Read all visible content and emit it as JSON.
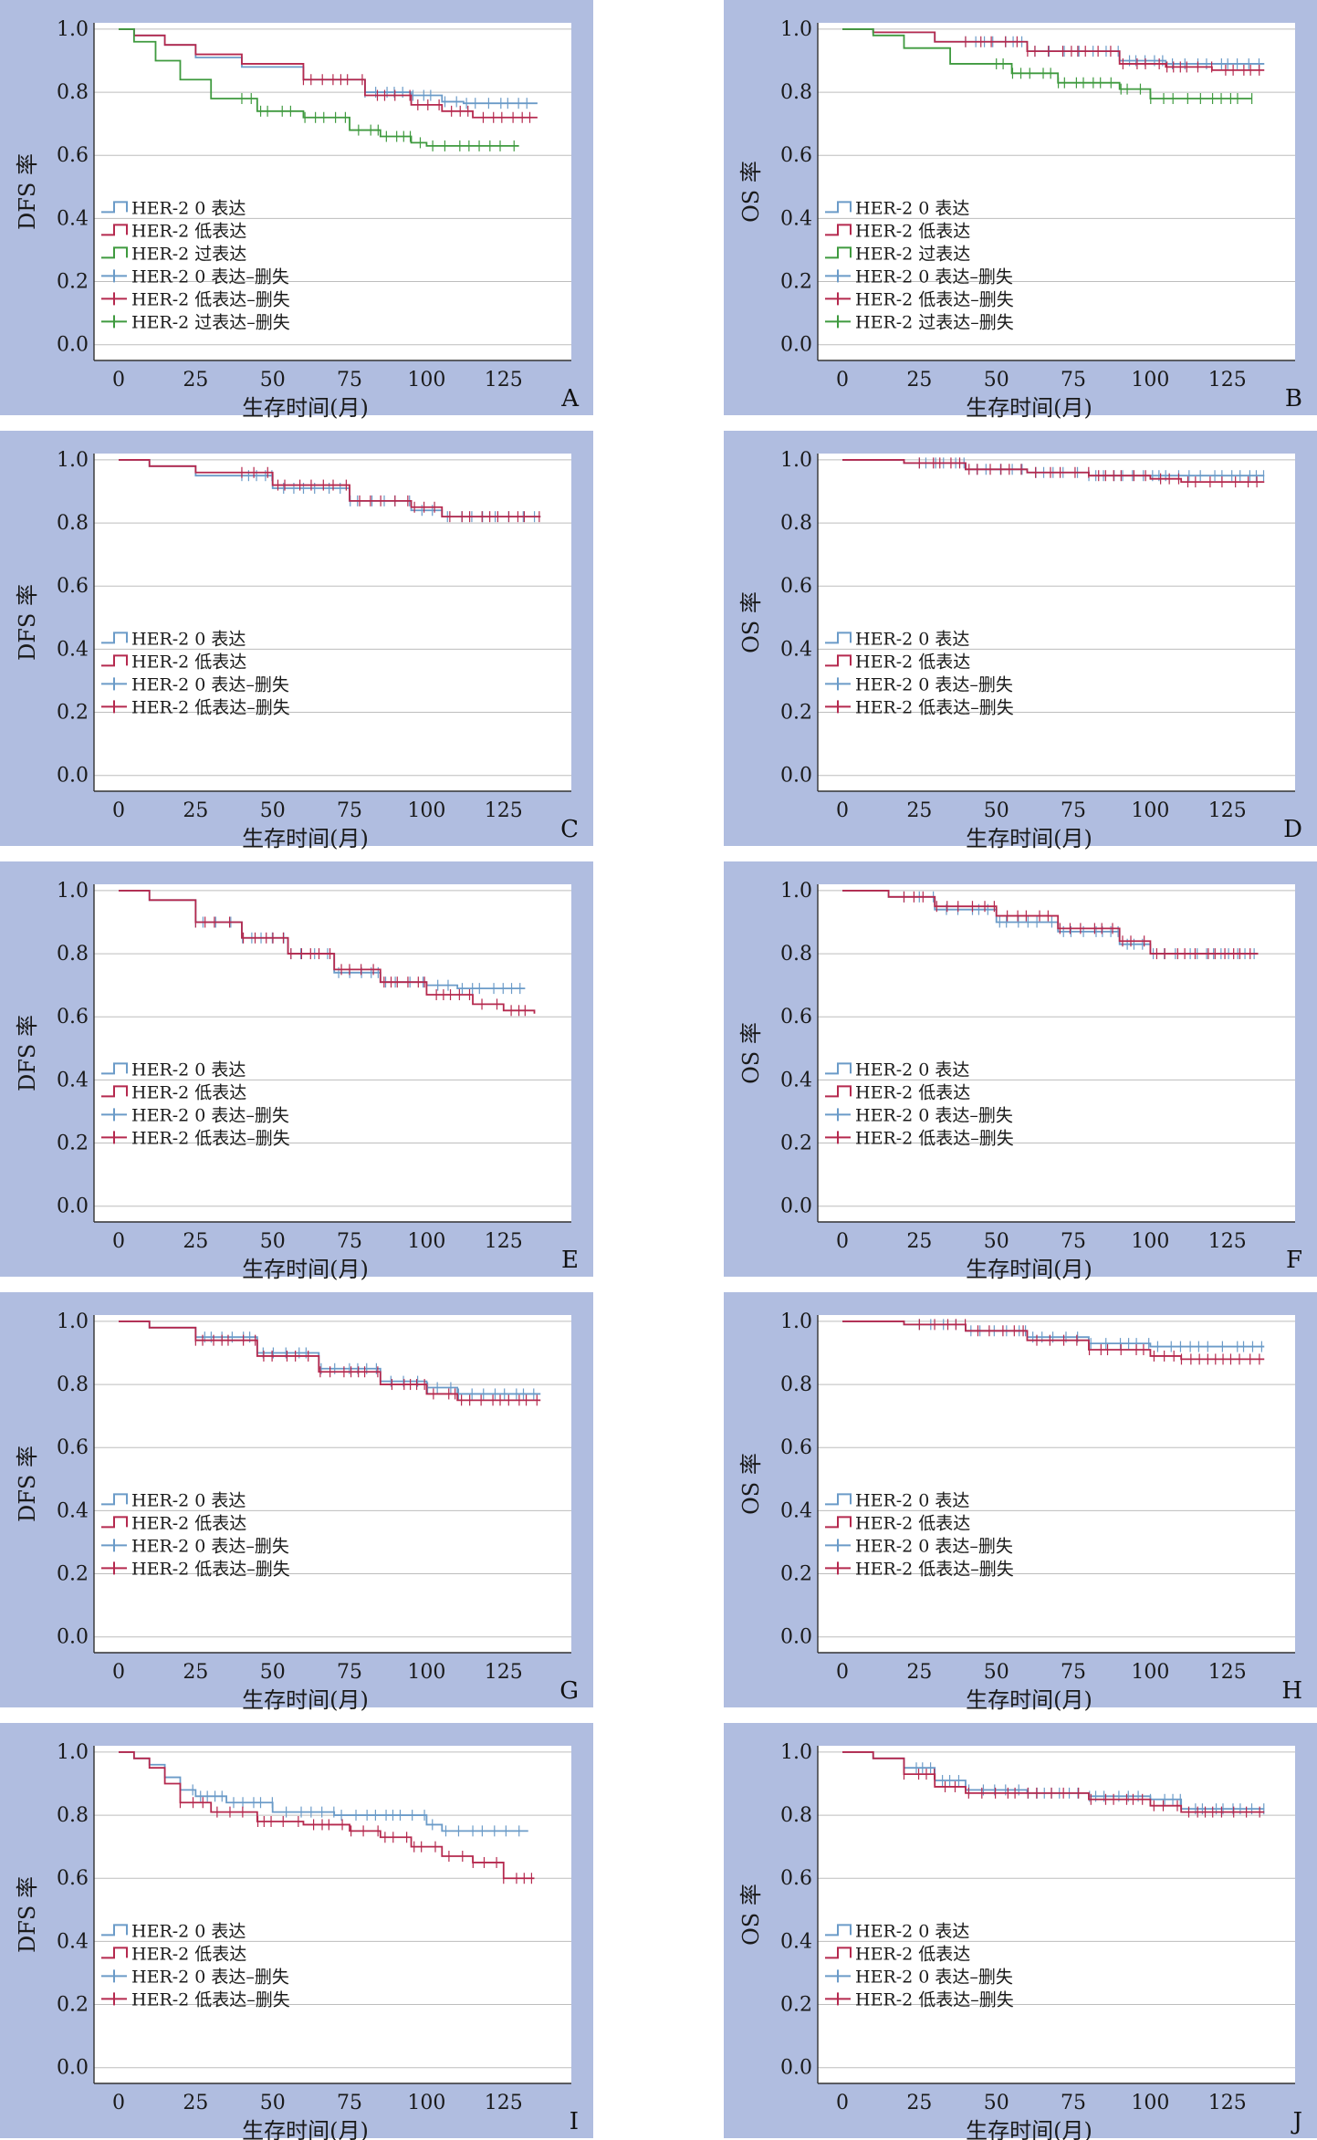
{
  "colors": {
    "panel_bg": "#b0bde0",
    "plot_bg": "#ffffff",
    "grid": "#bdbdbd",
    "axis": "#333333",
    "text": "#1a1a1a"
  },
  "legend_names": {
    "zero": "HER-2 0 表达",
    "low": "HER-2 低表达",
    "over": "HER-2 过表达",
    "zero_cens": "HER-2 0 表达–删失",
    "low_cens": "HER-2 低表达–删失",
    "over_cens": "HER-2 过表达–删失"
  },
  "chart_data": [
    {
      "panel_letter": "A",
      "type": "line",
      "ylabel": "DFS 率",
      "xlabel": "生存时间(月)",
      "xticks": [
        "0",
        "25",
        "50",
        "75",
        "100",
        "125"
      ],
      "yticks": [
        "0.0",
        "0.2",
        "0.4",
        "0.6",
        "0.8",
        "1.0"
      ],
      "xlim": [
        -8,
        147
      ],
      "ylim": [
        -0.05,
        1.02
      ],
      "series": [
        {
          "key": "zero",
          "color": "#6b9bc8",
          "x": [
            0,
            5,
            15,
            25,
            40,
            60,
            80,
            95,
            105,
            112,
            136
          ],
          "y": [
            1.0,
            0.98,
            0.95,
            0.91,
            0.88,
            0.84,
            0.8,
            0.79,
            0.77,
            0.765,
            0.765
          ],
          "cens_from": 80
        },
        {
          "key": "low",
          "color": "#b5294e",
          "x": [
            0,
            5,
            15,
            25,
            40,
            60,
            80,
            95,
            105,
            115,
            136
          ],
          "y": [
            1.0,
            0.98,
            0.95,
            0.92,
            0.89,
            0.84,
            0.79,
            0.76,
            0.74,
            0.72,
            0.72
          ],
          "cens_from": 60
        },
        {
          "key": "over",
          "color": "#3f9a3f",
          "x": [
            0,
            5,
            12,
            20,
            30,
            45,
            60,
            75,
            85,
            95,
            100,
            130
          ],
          "y": [
            1.0,
            0.96,
            0.9,
            0.84,
            0.78,
            0.74,
            0.72,
            0.68,
            0.66,
            0.64,
            0.63,
            0.63
          ],
          "cens_from": 40
        }
      ]
    },
    {
      "panel_letter": "B",
      "type": "line",
      "ylabel": "OS 率",
      "xlabel": "生存时间(月)",
      "xticks": [
        "0",
        "25",
        "50",
        "75",
        "100",
        "125"
      ],
      "yticks": [
        "0.0",
        "0.2",
        "0.4",
        "0.6",
        "0.8",
        "1.0"
      ],
      "xlim": [
        -8,
        147
      ],
      "ylim": [
        -0.05,
        1.02
      ],
      "series": [
        {
          "key": "zero",
          "color": "#6b9bc8",
          "x": [
            0,
            10,
            30,
            60,
            90,
            105,
            137
          ],
          "y": [
            1.0,
            0.99,
            0.96,
            0.93,
            0.9,
            0.89,
            0.89
          ],
          "cens_from": 40
        },
        {
          "key": "low",
          "color": "#b5294e",
          "x": [
            0,
            10,
            30,
            60,
            90,
            105,
            120,
            137
          ],
          "y": [
            1.0,
            0.99,
            0.96,
            0.93,
            0.89,
            0.88,
            0.87,
            0.87
          ],
          "cens_from": 40
        },
        {
          "key": "over",
          "color": "#3f9a3f",
          "x": [
            0,
            10,
            20,
            35,
            55,
            70,
            90,
            100,
            133
          ],
          "y": [
            1.0,
            0.98,
            0.94,
            0.89,
            0.86,
            0.83,
            0.81,
            0.78,
            0.78
          ],
          "cens_from": 50
        }
      ]
    },
    {
      "panel_letter": "C",
      "type": "line",
      "ylabel": "DFS 率",
      "xlabel": "生存时间(月)",
      "xticks": [
        "0",
        "25",
        "50",
        "75",
        "100",
        "125"
      ],
      "yticks": [
        "0.0",
        "0.2",
        "0.4",
        "0.6",
        "0.8",
        "1.0"
      ],
      "xlim": [
        -8,
        147
      ],
      "ylim": [
        -0.05,
        1.02
      ],
      "series": [
        {
          "key": "zero",
          "color": "#6b9bc8",
          "x": [
            0,
            10,
            25,
            50,
            75,
            95,
            105,
            137
          ],
          "y": [
            1.0,
            0.98,
            0.95,
            0.91,
            0.87,
            0.84,
            0.82,
            0.82
          ],
          "cens_from": 40
        },
        {
          "key": "low",
          "color": "#b5294e",
          "x": [
            0,
            10,
            25,
            50,
            75,
            95,
            105,
            137
          ],
          "y": [
            1.0,
            0.98,
            0.96,
            0.92,
            0.87,
            0.85,
            0.82,
            0.82
          ],
          "cens_from": 40
        }
      ]
    },
    {
      "panel_letter": "D",
      "type": "line",
      "ylabel": "OS 率",
      "xlabel": "生存时间(月)",
      "xticks": [
        "0",
        "25",
        "50",
        "75",
        "100",
        "125"
      ],
      "yticks": [
        "0.0",
        "0.2",
        "0.4",
        "0.6",
        "0.8",
        "1.0"
      ],
      "xlim": [
        -8,
        147
      ],
      "ylim": [
        -0.05,
        1.02
      ],
      "series": [
        {
          "key": "zero",
          "color": "#6b9bc8",
          "x": [
            0,
            20,
            40,
            60,
            80,
            100,
            137
          ],
          "y": [
            1.0,
            0.99,
            0.97,
            0.96,
            0.95,
            0.95,
            0.95
          ],
          "cens_from": 25
        },
        {
          "key": "low",
          "color": "#b5294e",
          "x": [
            0,
            20,
            40,
            60,
            80,
            100,
            110,
            137
          ],
          "y": [
            1.0,
            0.99,
            0.97,
            0.96,
            0.95,
            0.94,
            0.93,
            0.93
          ],
          "cens_from": 25
        }
      ]
    },
    {
      "panel_letter": "E",
      "type": "line",
      "ylabel": "DFS 率",
      "xlabel": "生存时间(月)",
      "xticks": [
        "0",
        "25",
        "50",
        "75",
        "100",
        "125"
      ],
      "yticks": [
        "0.0",
        "0.2",
        "0.4",
        "0.6",
        "0.8",
        "1.0"
      ],
      "xlim": [
        -8,
        147
      ],
      "ylim": [
        -0.05,
        1.02
      ],
      "series": [
        {
          "key": "zero",
          "color": "#6b9bc8",
          "x": [
            0,
            10,
            25,
            40,
            55,
            70,
            85,
            100,
            110,
            132
          ],
          "y": [
            1.0,
            0.97,
            0.9,
            0.85,
            0.8,
            0.74,
            0.71,
            0.7,
            0.69,
            0.69
          ],
          "cens_from": 25
        },
        {
          "key": "low",
          "color": "#b5294e",
          "x": [
            0,
            10,
            25,
            40,
            55,
            70,
            85,
            100,
            115,
            125,
            135
          ],
          "y": [
            1.0,
            0.97,
            0.9,
            0.85,
            0.8,
            0.75,
            0.71,
            0.67,
            0.64,
            0.62,
            0.61
          ],
          "cens_from": 25
        }
      ]
    },
    {
      "panel_letter": "F",
      "type": "line",
      "ylabel": "OS 率",
      "xlabel": "生存时间(月)",
      "xticks": [
        "0",
        "25",
        "50",
        "75",
        "100",
        "125"
      ],
      "yticks": [
        "0.0",
        "0.2",
        "0.4",
        "0.6",
        "0.8",
        "1.0"
      ],
      "xlim": [
        -8,
        147
      ],
      "ylim": [
        -0.05,
        1.02
      ],
      "series": [
        {
          "key": "zero",
          "color": "#6b9bc8",
          "x": [
            0,
            15,
            30,
            50,
            70,
            90,
            100,
            135
          ],
          "y": [
            1.0,
            0.98,
            0.94,
            0.9,
            0.87,
            0.83,
            0.8,
            0.8
          ],
          "cens_from": 20
        },
        {
          "key": "low",
          "color": "#b5294e",
          "x": [
            0,
            15,
            30,
            50,
            70,
            90,
            100,
            135
          ],
          "y": [
            1.0,
            0.98,
            0.95,
            0.92,
            0.88,
            0.84,
            0.8,
            0.8
          ],
          "cens_from": 20
        }
      ]
    },
    {
      "panel_letter": "G",
      "type": "line",
      "ylabel": "DFS 率",
      "xlabel": "生存时间(月)",
      "xticks": [
        "0",
        "25",
        "50",
        "75",
        "100",
        "125"
      ],
      "yticks": [
        "0.0",
        "0.2",
        "0.4",
        "0.6",
        "0.8",
        "1.0"
      ],
      "xlim": [
        -8,
        147
      ],
      "ylim": [
        -0.05,
        1.02
      ],
      "series": [
        {
          "key": "zero",
          "color": "#6b9bc8",
          "x": [
            0,
            10,
            25,
            45,
            65,
            85,
            100,
            110,
            137
          ],
          "y": [
            1.0,
            0.98,
            0.95,
            0.9,
            0.85,
            0.81,
            0.79,
            0.77,
            0.77
          ],
          "cens_from": 25
        },
        {
          "key": "low",
          "color": "#b5294e",
          "x": [
            0,
            10,
            25,
            45,
            65,
            85,
            100,
            110,
            137
          ],
          "y": [
            1.0,
            0.98,
            0.94,
            0.89,
            0.84,
            0.8,
            0.77,
            0.75,
            0.75
          ],
          "cens_from": 25
        }
      ]
    },
    {
      "panel_letter": "H",
      "type": "line",
      "ylabel": "OS 率",
      "xlabel": "生存时间(月)",
      "xticks": [
        "0",
        "25",
        "50",
        "75",
        "100",
        "125"
      ],
      "yticks": [
        "0.0",
        "0.2",
        "0.4",
        "0.6",
        "0.8",
        "1.0"
      ],
      "xlim": [
        -8,
        147
      ],
      "ylim": [
        -0.05,
        1.02
      ],
      "series": [
        {
          "key": "zero",
          "color": "#6b9bc8",
          "x": [
            0,
            20,
            40,
            60,
            80,
            100,
            137
          ],
          "y": [
            1.0,
            0.99,
            0.97,
            0.95,
            0.93,
            0.92,
            0.92
          ],
          "cens_from": 25
        },
        {
          "key": "low",
          "color": "#b5294e",
          "x": [
            0,
            20,
            40,
            60,
            80,
            100,
            110,
            137
          ],
          "y": [
            1.0,
            0.99,
            0.97,
            0.94,
            0.91,
            0.89,
            0.88,
            0.88
          ],
          "cens_from": 25
        }
      ]
    },
    {
      "panel_letter": "I",
      "type": "line",
      "ylabel": "DFS 率",
      "xlabel": "生存时间(月)",
      "xticks": [
        "0",
        "25",
        "50",
        "75",
        "100",
        "125"
      ],
      "yticks": [
        "0.0",
        "0.2",
        "0.4",
        "0.6",
        "0.8",
        "1.0"
      ],
      "xlim": [
        -8,
        147
      ],
      "ylim": [
        -0.05,
        1.02
      ],
      "series": [
        {
          "key": "zero",
          "color": "#6b9bc8",
          "x": [
            0,
            5,
            10,
            15,
            20,
            25,
            35,
            50,
            70,
            90,
            100,
            105,
            133
          ],
          "y": [
            1.0,
            0.98,
            0.96,
            0.92,
            0.88,
            0.86,
            0.84,
            0.81,
            0.8,
            0.8,
            0.77,
            0.75,
            0.75
          ],
          "cens_from": 20
        },
        {
          "key": "low",
          "color": "#b5294e",
          "x": [
            0,
            5,
            10,
            15,
            20,
            30,
            45,
            60,
            75,
            85,
            95,
            105,
            115,
            125,
            135
          ],
          "y": [
            1.0,
            0.98,
            0.95,
            0.9,
            0.84,
            0.81,
            0.78,
            0.77,
            0.75,
            0.73,
            0.7,
            0.67,
            0.65,
            0.6,
            0.6
          ],
          "cens_from": 20
        }
      ]
    },
    {
      "panel_letter": "J",
      "type": "line",
      "ylabel": "OS 率",
      "xlabel": "生存时间(月)",
      "xticks": [
        "0",
        "25",
        "50",
        "75",
        "100",
        "125"
      ],
      "yticks": [
        "0.0",
        "0.2",
        "0.4",
        "0.6",
        "0.8",
        "1.0"
      ],
      "xlim": [
        -8,
        147
      ],
      "ylim": [
        -0.05,
        1.02
      ],
      "series": [
        {
          "key": "zero",
          "color": "#6b9bc8",
          "x": [
            0,
            10,
            20,
            30,
            40,
            60,
            80,
            100,
            110,
            137
          ],
          "y": [
            1.0,
            0.98,
            0.95,
            0.91,
            0.88,
            0.87,
            0.86,
            0.85,
            0.82,
            0.82
          ],
          "cens_from": 20
        },
        {
          "key": "low",
          "color": "#b5294e",
          "x": [
            0,
            10,
            20,
            30,
            40,
            60,
            80,
            100,
            110,
            137
          ],
          "y": [
            1.0,
            0.98,
            0.93,
            0.89,
            0.87,
            0.87,
            0.85,
            0.83,
            0.81,
            0.81
          ],
          "cens_from": 20
        }
      ]
    }
  ]
}
